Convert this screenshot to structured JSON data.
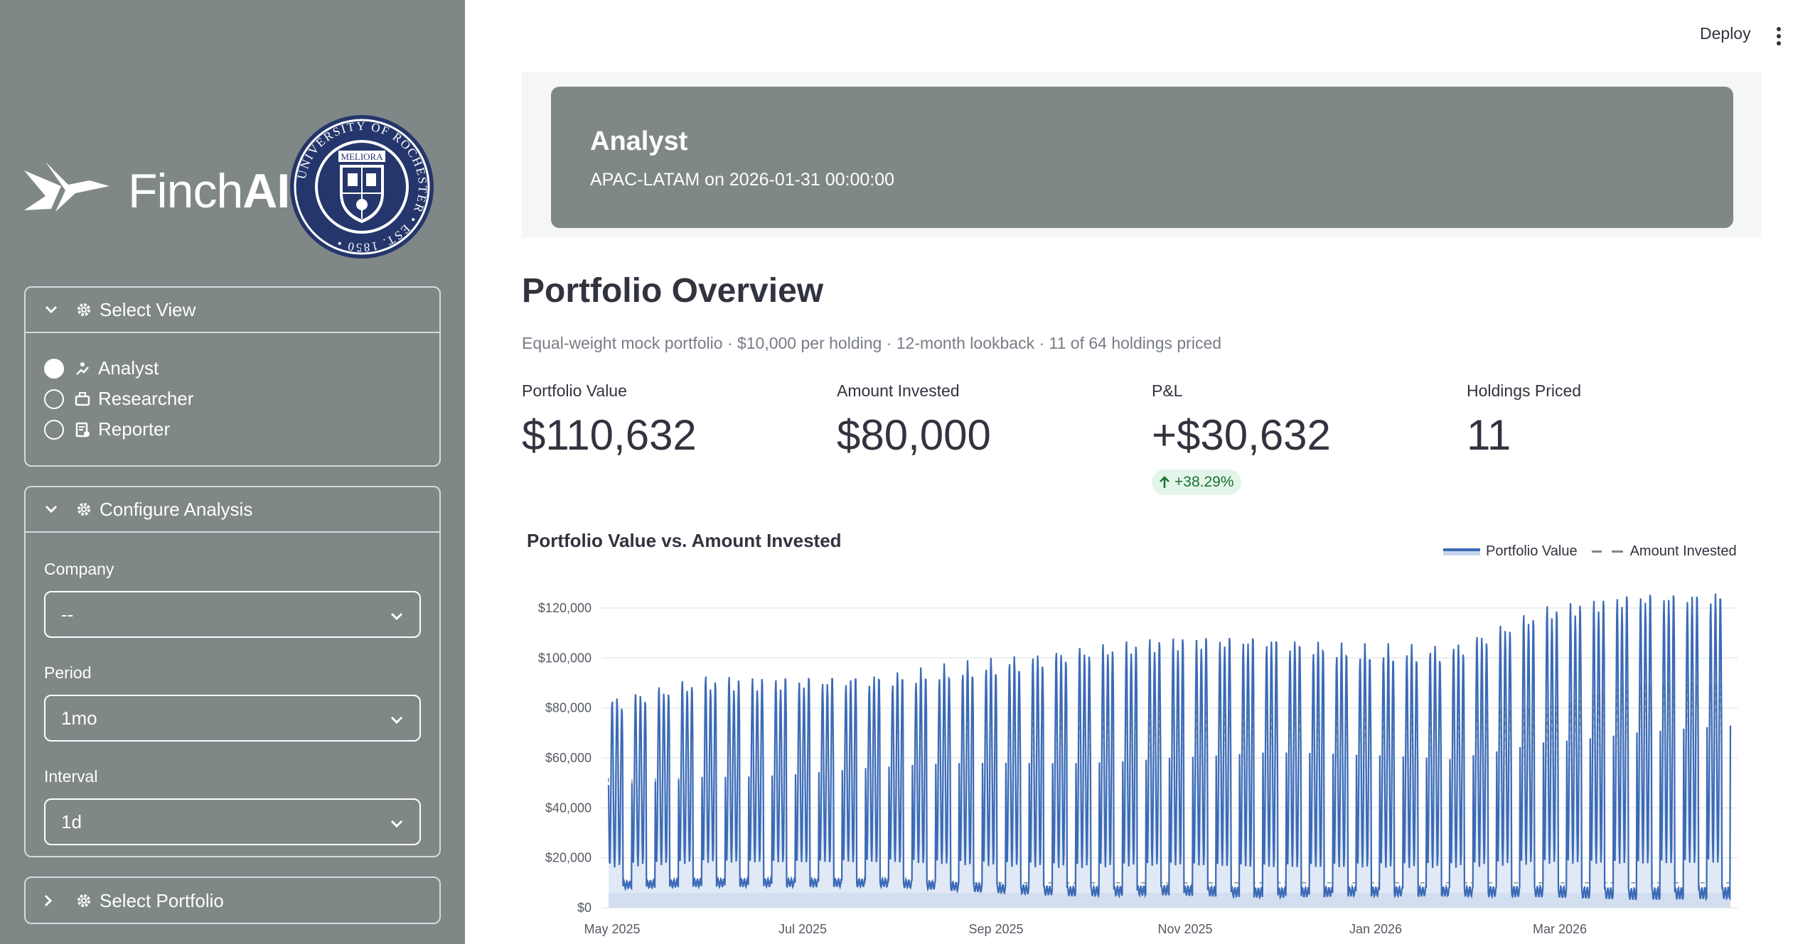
{
  "topbar": {
    "deploy_label": "Deploy"
  },
  "sidebar": {
    "brand": {
      "name_light": "Finch",
      "name_bold": "AI"
    },
    "select_view": {
      "title": "Select View",
      "options": [
        {
          "label": "Analyst",
          "checked": true,
          "icon": "analyst-icon"
        },
        {
          "label": "Researcher",
          "checked": false,
          "icon": "researcher-icon"
        },
        {
          "label": "Reporter",
          "checked": false,
          "icon": "reporter-icon"
        }
      ]
    },
    "configure": {
      "title": "Configure Analysis",
      "company_label": "Company",
      "company_value": "--",
      "period_label": "Period",
      "period_value": "1mo",
      "interval_label": "Interval",
      "interval_value": "1d"
    },
    "select_portfolio": {
      "title": "Select Portfolio"
    }
  },
  "header": {
    "title": "Analyst",
    "subtitle": "APAC-LATAM on 2026-01-31 00:00:00"
  },
  "main": {
    "title": "Portfolio Overview",
    "caption": "Equal-weight mock portfolio · $10,000 per holding · 12-month lookback · 11 of 64 holdings priced",
    "metrics": [
      {
        "label": "Portfolio Value",
        "value": "$110,632"
      },
      {
        "label": "Amount Invested",
        "value": "$80,000"
      },
      {
        "label": "P&L",
        "value": "+$30,632"
      },
      {
        "label": "Holdings Priced",
        "value": "11"
      }
    ],
    "delta": "+38.29%"
  },
  "colors": {
    "sidebar_bg": "#7f8787",
    "header_bg": "#7f8787",
    "series_value": "#3b6ab6",
    "series_invested": "#7e8a8c",
    "delta_positive": "#177233"
  },
  "chart_data": {
    "type": "area",
    "title": "Portfolio Value vs. Amount Invested",
    "legend_position": "top-right",
    "grid": true,
    "ylim": [
      0,
      120000
    ],
    "y_ticks": [
      "$0",
      "$20,000",
      "$40,000",
      "$60,000",
      "$80,000",
      "$100,000",
      "$120,000"
    ],
    "x_ticks": [
      "May 2025",
      "Jul 2025",
      "Sep 2025",
      "Nov 2025",
      "Jan 2026",
      "Mar 2026"
    ],
    "series": [
      {
        "name": "Portfolio Value",
        "style": "solid-area",
        "x": [
          "2025-04",
          "2025-05",
          "2025-06",
          "2025-07",
          "2025-08",
          "2025-09",
          "2025-10",
          "2025-11",
          "2025-12",
          "2026-01",
          "2026-02",
          "2026-03",
          "2026-04"
        ],
        "peak_values": [
          82000,
          90000,
          90000,
          92000,
          97000,
          102000,
          106000,
          107000,
          103000,
          103000,
          118000,
          124000,
          125000
        ],
        "trough_values": [
          9000,
          10000,
          10000,
          10000,
          8000,
          6500,
          7000,
          6000,
          6500,
          6500,
          6500,
          5500,
          6000
        ]
      },
      {
        "name": "Amount Invested",
        "style": "dashed",
        "x": [
          "2025-04",
          "2025-05",
          "2025-06",
          "2025-07",
          "2025-08",
          "2025-09",
          "2025-10",
          "2025-11",
          "2025-12",
          "2026-01",
          "2026-02",
          "2026-03",
          "2026-04"
        ],
        "peak_values": [
          80000,
          80000,
          80000,
          80000,
          80000,
          80000,
          80000,
          80000,
          80000,
          80000,
          80000,
          90000,
          90000
        ],
        "trough_values": [
          10000,
          10000,
          10000,
          10000,
          10000,
          10000,
          10000,
          10000,
          10000,
          10000,
          10000,
          10000,
          10000
        ]
      }
    ]
  }
}
